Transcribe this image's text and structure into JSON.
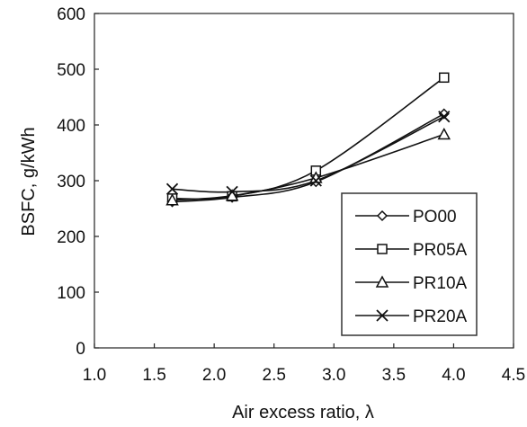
{
  "chart_data": {
    "type": "line",
    "xlabel": "Air excess ratio, λ",
    "ylabel": "BSFC, g/kWh",
    "xlim": [
      1.0,
      4.5
    ],
    "ylim": [
      0,
      600
    ],
    "xticks": [
      "1.0",
      "1.5",
      "2.0",
      "2.5",
      "3.0",
      "3.5",
      "4.0",
      "4.5"
    ],
    "yticks": [
      "0",
      "100",
      "200",
      "300",
      "400",
      "500",
      "600"
    ],
    "grid": false,
    "legend_position": "right",
    "series": [
      {
        "name": "PO00",
        "marker": "diamond",
        "x": [
          1.65,
          2.15,
          2.85,
          3.92
        ],
        "y": [
          262,
          270,
          298,
          420
        ]
      },
      {
        "name": "PR05A",
        "marker": "square",
        "x": [
          1.65,
          2.15,
          2.85,
          3.92
        ],
        "y": [
          268,
          272,
          318,
          485
        ]
      },
      {
        "name": "PR10A",
        "marker": "triangle",
        "x": [
          1.65,
          2.15,
          2.85,
          3.92
        ],
        "y": [
          265,
          273,
          305,
          383
        ]
      },
      {
        "name": "PR20A",
        "marker": "x",
        "x": [
          1.65,
          2.15,
          2.85,
          3.92
        ],
        "y": [
          285,
          280,
          300,
          415
        ]
      }
    ]
  }
}
